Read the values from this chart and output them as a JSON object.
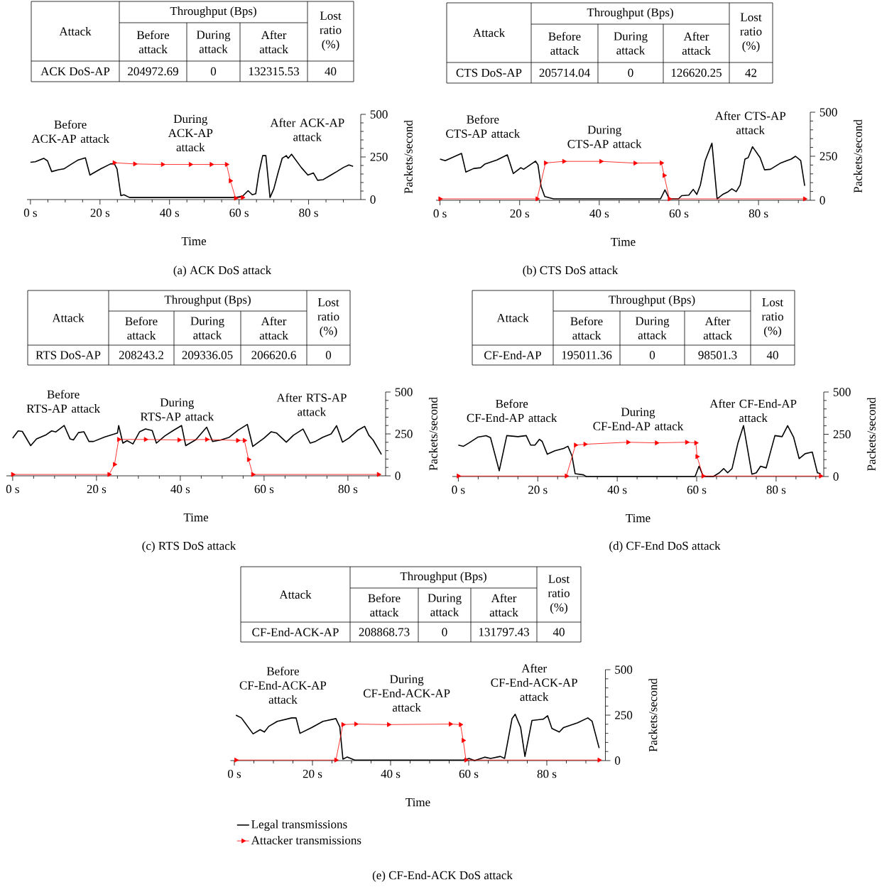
{
  "chart_data": [
    {
      "type": "line",
      "title": "(a)  ACK DoS attack",
      "xlabel": "Time",
      "ylabel": "Packets/second",
      "xlim": [
        -1,
        95
      ],
      "ylim": [
        0,
        500
      ],
      "xticks": [
        {
          "value": 0,
          "label": "0 s"
        },
        {
          "value": 5,
          "label": null
        },
        {
          "value": 10,
          "label": null
        },
        {
          "value": 15,
          "label": null
        },
        {
          "value": 20,
          "label": "20 s"
        },
        {
          "value": 25,
          "label": null
        },
        {
          "value": 30,
          "label": null
        },
        {
          "value": 35,
          "label": null
        },
        {
          "value": 40,
          "label": "40 s"
        },
        {
          "value": 45,
          "label": null
        },
        {
          "value": 50,
          "label": null
        },
        {
          "value": 55,
          "label": null
        },
        {
          "value": 60,
          "label": "60 s"
        },
        {
          "value": 65,
          "label": null
        },
        {
          "value": 70,
          "label": null
        },
        {
          "value": 75,
          "label": null
        },
        {
          "value": 80,
          "label": "80 s"
        },
        {
          "value": 85,
          "label": null
        },
        {
          "value": 90,
          "label": null
        }
      ],
      "yticks": [
        0,
        {
          "value": 50,
          "label": null
        },
        {
          "value": 100,
          "label": null
        },
        {
          "value": 150,
          "label": null
        },
        {
          "value": 200,
          "label": null
        },
        250,
        {
          "value": 300,
          "label": null
        },
        {
          "value": 350,
          "label": null
        },
        {
          "value": 400,
          "label": null
        },
        {
          "value": 450,
          "label": null
        },
        500
      ],
      "annotations": [
        "Attack",
        "Throughput (Bps)",
        "Lost ratio (%)",
        "Before attack",
        "During attack",
        "After attack",
        "ACK DoS-AP",
        "204972.69",
        "0",
        "132315.53",
        "40",
        "Before ACK-AP attack",
        "During ACK-AP attack",
        "After ACK-AP attack"
      ],
      "series": [
        {
          "color": "#000000",
          "x": [
            0,
            1.4,
            3.8,
            4.9,
            6.1,
            8.1,
            9.6,
            11.6,
            13.6,
            15.8,
            17.1,
            20.2,
            23,
            24.1,
            24.9,
            26,
            26.9,
            28.5,
            55.9,
            59,
            61,
            62.6,
            63.8,
            64.8,
            65.7,
            66.8,
            67.7,
            68.9,
            70,
            71.2,
            72.4,
            73.6,
            74.1,
            75.1,
            77.9,
            79.8,
            81.4,
            82.6,
            84.2,
            86.5,
            88.1,
            90,
            91.6,
            92.8
          ],
          "values": [
            219,
            222,
            242,
            227,
            164,
            175,
            180,
            206,
            231,
            245,
            144,
            180,
            209,
            211,
            180,
            23,
            28,
            12,
            12,
            12,
            20,
            52,
            28,
            34,
            156,
            258,
            258,
            12,
            63,
            156,
            242,
            258,
            242,
            266,
            188,
            144,
            156,
            113,
            117,
            145,
            164,
            188,
            203,
            195
          ]
        },
        {
          "color": "#ff0000",
          "marker": "triangle",
          "x": [
            24.1,
            30,
            38,
            46,
            52,
            56.4,
            57.5,
            59,
            61
          ],
          "values": [
            216,
            209,
            206,
            206,
            206,
            206,
            110,
            8,
            12
          ]
        }
      ]
    },
    {
      "type": "line",
      "title": "(b)  CTS DoS attack",
      "xlabel": "Time",
      "ylabel": "Packets/second",
      "xlim": [
        -1,
        93
      ],
      "ylim": [
        0,
        500
      ],
      "xticks": [
        {
          "value": 0,
          "label": "0 s"
        },
        {
          "value": 5,
          "label": null
        },
        {
          "value": 10,
          "label": null
        },
        {
          "value": 15,
          "label": null
        },
        {
          "value": 20,
          "label": "20 s"
        },
        {
          "value": 25,
          "label": null
        },
        {
          "value": 30,
          "label": null
        },
        {
          "value": 35,
          "label": null
        },
        {
          "value": 40,
          "label": "40 s"
        },
        {
          "value": 45,
          "label": null
        },
        {
          "value": 50,
          "label": null
        },
        {
          "value": 55,
          "label": null
        },
        {
          "value": 60,
          "label": "60 s"
        },
        {
          "value": 65,
          "label": null
        },
        {
          "value": 70,
          "label": null
        },
        {
          "value": 75,
          "label": null
        },
        {
          "value": 80,
          "label": "80 s"
        },
        {
          "value": 85,
          "label": null
        },
        {
          "value": 90,
          "label": null
        }
      ],
      "yticks": [
        0,
        {
          "value": 50,
          "label": null
        },
        {
          "value": 100,
          "label": null
        },
        {
          "value": 150,
          "label": null
        },
        {
          "value": 200,
          "label": null
        },
        250,
        {
          "value": 300,
          "label": null
        },
        {
          "value": 350,
          "label": null
        },
        {
          "value": 400,
          "label": null
        },
        {
          "value": 450,
          "label": null
        },
        500
      ],
      "annotations": [
        "Attack",
        "Throughput (Bps)",
        "Lost ratio (%)",
        "Before attack",
        "During attack",
        "After attack",
        "CTS DoS-AP",
        "205714.04",
        "0",
        "126620.25",
        "42",
        "Before CTS-AP attack",
        "During CTS-AP attack",
        "After CTS-AP attack"
      ],
      "series": [
        {
          "color": "#000000",
          "x": [
            0,
            1.3,
            5.4,
            6.5,
            8.4,
            10.2,
            11.3,
            14.3,
            16.9,
            18.4,
            20.3,
            21,
            24,
            24.6,
            25.4,
            26.3,
            28.5,
            55.4,
            56.5,
            57.6,
            59.9,
            60.7,
            62.5,
            63.6,
            64.5,
            65.4,
            66.6,
            68.3,
            69.6,
            71,
            72.2,
            73.3,
            74.4,
            75.4,
            76.6,
            77.4,
            78.5,
            80.4,
            81.5,
            83,
            85.6,
            87.1,
            88.2,
            89.3,
            90.6,
            91.6
          ],
          "values": [
            234,
            225,
            266,
            160,
            180,
            185,
            206,
            229,
            258,
            152,
            185,
            176,
            222,
            201,
            78,
            21,
            8,
            8,
            59,
            8,
            8,
            26,
            29,
            62,
            33,
            87,
            225,
            324,
            8,
            33,
            46,
            65,
            49,
            87,
            234,
            242,
            304,
            242,
            173,
            176,
            212,
            225,
            234,
            250,
            225,
            82
          ]
        },
        {
          "color": "#ff0000",
          "marker": "triangle",
          "x": [
            0,
            24.4,
            26.5,
            31.1,
            40.4,
            49,
            55.6,
            56.3,
            57.6,
            91.6
          ],
          "values": [
            8,
            8,
            212,
            221,
            221,
            211,
            212,
            141,
            8,
            8
          ]
        }
      ]
    },
    {
      "type": "line",
      "title": "(c)  RTS DoS attack",
      "xlabel": "Time",
      "ylabel": "Packets/second",
      "xlim": [
        -1.5,
        89
      ],
      "ylim": [
        0,
        500
      ],
      "xticks": [
        {
          "value": 0,
          "label": "0 s"
        },
        {
          "value": 5,
          "label": null
        },
        {
          "value": 10,
          "label": null
        },
        {
          "value": 15,
          "label": null
        },
        {
          "value": 20,
          "label": "20 s"
        },
        {
          "value": 25,
          "label": null
        },
        {
          "value": 30,
          "label": null
        },
        {
          "value": 35,
          "label": null
        },
        {
          "value": 40,
          "label": "40 s"
        },
        {
          "value": 45,
          "label": null
        },
        {
          "value": 50,
          "label": null
        },
        {
          "value": 55,
          "label": null
        },
        {
          "value": 60,
          "label": "60 s"
        },
        {
          "value": 65,
          "label": null
        },
        {
          "value": 70,
          "label": null
        },
        {
          "value": 75,
          "label": null
        },
        {
          "value": 80,
          "label": "80 s"
        },
        {
          "value": 85,
          "label": null
        }
      ],
      "yticks": [
        0,
        {
          "value": 50,
          "label": null
        },
        {
          "value": 100,
          "label": null
        },
        {
          "value": 150,
          "label": null
        },
        {
          "value": 200,
          "label": null
        },
        250,
        {
          "value": 300,
          "label": null
        },
        {
          "value": 350,
          "label": null
        },
        {
          "value": 400,
          "label": null
        },
        {
          "value": 450,
          "label": null
        },
        500
      ],
      "annotations": [
        "Attack",
        "Throughput (Bps)",
        "Lost ratio (%)",
        "Before attack",
        "During attack",
        "After attack",
        "RTS DoS-AP",
        "208243.2",
        "209336.05",
        "206620.6",
        "0",
        "Before RTS-AP attack",
        "During RTS-AP attack",
        "After RTS-AP attack"
      ],
      "series": [
        {
          "color": "#000000",
          "x": [
            0,
            1.3,
            2.3,
            4.3,
            5.7,
            8,
            9.3,
            10.3,
            12.3,
            13.7,
            14.5,
            15.7,
            17,
            18.2,
            19.3,
            22,
            25,
            25.3,
            26.3,
            27.3,
            28.7,
            30.3,
            31.7,
            33.3,
            34.3,
            36.3,
            38.3,
            40.3,
            41.3,
            43.7,
            46.3,
            47.7,
            49.7,
            51.7,
            53.7,
            56,
            57.3,
            60,
            61.7,
            63,
            65.3,
            67,
            69.3,
            71,
            72.3,
            74,
            76,
            77.3,
            78.7,
            80.3,
            82.3,
            84,
            85,
            86,
            88
          ],
          "values": [
            225,
            268,
            265,
            180,
            220,
            245,
            268,
            262,
            300,
            220,
            214,
            258,
            263,
            205,
            205,
            232,
            255,
            300,
            195,
            210,
            190,
            263,
            280,
            270,
            195,
            238,
            270,
            300,
            180,
            215,
            290,
            205,
            214,
            230,
            271,
            307,
            175,
            225,
            263,
            255,
            201,
            242,
            279,
            195,
            206,
            230,
            250,
            299,
            201,
            226,
            271,
            295,
            242,
            214,
            128
          ]
        },
        {
          "color": "#ff0000",
          "marker": "triangle",
          "x": [
            0,
            23,
            24.3,
            25.3,
            31.7,
            39.7,
            46.3,
            53.7,
            55.3,
            56.3,
            57.3,
            87.3
          ],
          "values": [
            8,
            8,
            68,
            217,
            217,
            214,
            217,
            211,
            211,
            97,
            8,
            8
          ]
        }
      ]
    },
    {
      "type": "line",
      "title": "(d)  CF-End DoS attack",
      "xlabel": "Time",
      "ylabel": "Packets/second",
      "xlim": [
        -1.5,
        92
      ],
      "ylim": [
        0,
        500
      ],
      "xticks": [
        {
          "value": 0,
          "label": "0 s"
        },
        {
          "value": 5,
          "label": null
        },
        {
          "value": 10,
          "label": null
        },
        {
          "value": 15,
          "label": null
        },
        {
          "value": 20,
          "label": "20 s"
        },
        {
          "value": 25,
          "label": null
        },
        {
          "value": 30,
          "label": null
        },
        {
          "value": 35,
          "label": null
        },
        {
          "value": 40,
          "label": "40 s"
        },
        {
          "value": 45,
          "label": null
        },
        {
          "value": 50,
          "label": null
        },
        {
          "value": 55,
          "label": null
        },
        {
          "value": 60,
          "label": "60 s"
        },
        {
          "value": 65,
          "label": null
        },
        {
          "value": 70,
          "label": null
        },
        {
          "value": 75,
          "label": null
        },
        {
          "value": 80,
          "label": "80 s"
        },
        {
          "value": 85,
          "label": null
        },
        {
          "value": 90,
          "label": null
        }
      ],
      "yticks": [
        0,
        {
          "value": 50,
          "label": null
        },
        {
          "value": 100,
          "label": null
        },
        {
          "value": 150,
          "label": null
        },
        {
          "value": 200,
          "label": null
        },
        250,
        {
          "value": 300,
          "label": null
        },
        {
          "value": 350,
          "label": null
        },
        {
          "value": 400,
          "label": null
        },
        {
          "value": 450,
          "label": null
        },
        500
      ],
      "annotations": [
        "Attack",
        "Throughput (Bps)",
        "Lost ratio (%)",
        "Before attack",
        "During attack",
        "After attack",
        "CF-End-AP",
        "195011.36",
        "0",
        "98501.3",
        "40",
        "Before CF-End-AP attack",
        "During CF-End-AP attack",
        "After CF-End-AP attack"
      ],
      "series": [
        {
          "color": "#000000",
          "x": [
            0,
            1.3,
            2.7,
            4.9,
            7,
            8.1,
            10.3,
            12.2,
            15,
            17.1,
            18.2,
            19.3,
            20.4,
            21.1,
            22.4,
            24.3,
            26.5,
            27.6,
            28.6,
            29.4,
            31.5,
            32.2,
            59.6,
            60.6,
            61.7,
            64.2,
            65.7,
            66.8,
            67.8,
            68.9,
            70.4,
            71.8,
            73.9,
            75,
            76.1,
            77.5,
            79.7,
            81.5,
            82.9,
            84.4,
            85.8,
            87.3,
            89.1,
            90.4,
            91.2
          ],
          "values": [
            186,
            179,
            199,
            233,
            242,
            230,
            34,
            242,
            236,
            242,
            186,
            186,
            220,
            208,
            132,
            152,
            166,
            179,
            123,
            17,
            10,
            0,
            0,
            61,
            0,
            0,
            22,
            47,
            22,
            47,
            199,
            301,
            14,
            22,
            61,
            51,
            242,
            236,
            301,
            233,
            106,
            135,
            145,
            22,
            17
          ]
        },
        {
          "color": "#ff0000",
          "marker": "triangle",
          "x": [
            0,
            27.2,
            29.5,
            31.9,
            42.7,
            49.9,
            57.5,
            59.8,
            60.1,
            61.6,
            91.2
          ],
          "values": [
            3,
            3,
            186,
            191,
            203,
            199,
            203,
            199,
            118,
            3,
            3
          ]
        }
      ]
    },
    {
      "type": "line",
      "title": "(e)  CF-End-ACK DoS attack",
      "xlabel": "Time",
      "ylabel": "Packets/second",
      "xlim": [
        -1,
        95
      ],
      "ylim": [
        0,
        500
      ],
      "legend": "bottom",
      "xticks": [
        {
          "value": 0,
          "label": "0 s"
        },
        {
          "value": 5,
          "label": null
        },
        {
          "value": 10,
          "label": null
        },
        {
          "value": 15,
          "label": null
        },
        {
          "value": 20,
          "label": "20 s"
        },
        {
          "value": 25,
          "label": null
        },
        {
          "value": 30,
          "label": null
        },
        {
          "value": 35,
          "label": null
        },
        {
          "value": 40,
          "label": "40 s"
        },
        {
          "value": 45,
          "label": null
        },
        {
          "value": 50,
          "label": null
        },
        {
          "value": 55,
          "label": null
        },
        {
          "value": 60,
          "label": "60 s"
        },
        {
          "value": 65,
          "label": null
        },
        {
          "value": 70,
          "label": null
        },
        {
          "value": 75,
          "label": null
        },
        {
          "value": 80,
          "label": "80 s"
        },
        {
          "value": 85,
          "label": null
        },
        {
          "value": 90,
          "label": null
        }
      ],
      "yticks": [
        0,
        {
          "value": 50,
          "label": null
        },
        {
          "value": 100,
          "label": null
        },
        {
          "value": 150,
          "label": null
        },
        {
          "value": 200,
          "label": null
        },
        250,
        {
          "value": 300,
          "label": null
        },
        {
          "value": 350,
          "label": null
        },
        {
          "value": 400,
          "label": null
        },
        {
          "value": 450,
          "label": null
        },
        500
      ],
      "annotations": [
        "Attack",
        "Throughput (Bps)",
        "Lost ratio (%)",
        "Before attack",
        "During attack",
        "After attack",
        "CF-End-ACK-AP",
        "208868.73",
        "0",
        "131797.43",
        "40",
        "Before CF-End-ACK-AP attack",
        "During CF-End-ACK-AP attack",
        "After CF-End-ACK-AP attack"
      ],
      "series": [
        {
          "name": "Legal transmissions",
          "color": "#000000",
          "x": [
            0.4,
            1.8,
            4.8,
            6.6,
            7.7,
            8.8,
            11,
            14.7,
            15.8,
            16.8,
            19.8,
            22.7,
            26,
            27,
            27.8,
            28.9,
            30.8,
            58.6,
            60.1,
            61.5,
            64.1,
            65.6,
            68.1,
            69.2,
            71.1,
            71.9,
            73.3,
            74.4,
            76.2,
            79.1,
            80.2,
            81.3,
            83.2,
            84.3,
            87.9,
            90.5,
            91.6,
            93.4
          ],
          "values": [
            250,
            235,
            147,
            170,
            157,
            188,
            216,
            235,
            235,
            150,
            182,
            216,
            231,
            185,
            8,
            20,
            3,
            3,
            12,
            0,
            19,
            12,
            23,
            12,
            231,
            255,
            182,
            23,
            221,
            228,
            247,
            177,
            157,
            182,
            208,
            235,
            216,
            69
          ]
        },
        {
          "name": "Attacker transmissions",
          "color": "#ff0000",
          "marker": "triangle",
          "x": [
            0.4,
            26,
            27.8,
            31.1,
            39.5,
            55.3,
            57.9,
            58.6,
            59.3,
            93.4
          ],
          "values": [
            3,
            3,
            198,
            201,
            198,
            201,
            198,
            111,
            3,
            3
          ]
        }
      ]
    }
  ]
}
